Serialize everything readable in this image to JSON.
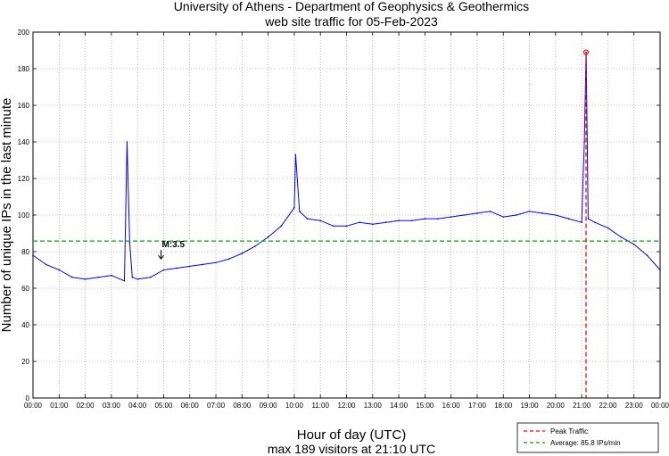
{
  "chart_data": {
    "type": "line",
    "title": "University of Athens - Department of Geophysics & Geothermics",
    "subtitle": "web site traffic for 05-Feb-2023",
    "xlabel": "Hour of day (UTC)",
    "ylabel": "Number of unique IPs in the last minute",
    "footer": "max 189 visitors at 21:10 UTC",
    "xlim": [
      0,
      24
    ],
    "ylim": [
      0,
      200
    ],
    "x_ticks": [
      "00:00",
      "01:00",
      "02:00",
      "03:00",
      "04:00",
      "05:00",
      "06:00",
      "07:00",
      "08:00",
      "09:00",
      "10:00",
      "11:00",
      "12:00",
      "13:00",
      "14:00",
      "15:00",
      "16:00",
      "17:00",
      "18:00",
      "19:00",
      "20:00",
      "21:00",
      "22:00",
      "23:00",
      "00:00"
    ],
    "y_ticks": [
      "0",
      "20",
      "40",
      "60",
      "80",
      "100",
      "120",
      "140",
      "160",
      "180",
      "200"
    ],
    "grid": true,
    "legend_position": "bottom-right",
    "series": [
      {
        "name": "",
        "color": "#0000ff",
        "x": [
          0,
          0.5,
          1,
          1.5,
          2,
          2.5,
          3,
          3.5,
          3.6,
          3.7,
          3.8,
          4,
          4.5,
          5,
          5.5,
          6,
          6.5,
          7,
          7.5,
          8,
          8.5,
          9,
          9.5,
          10,
          10.05,
          10.2,
          10.5,
          11,
          11.5,
          12,
          12.5,
          13,
          13.5,
          14,
          14.5,
          15,
          15.5,
          16,
          16.5,
          17,
          17.5,
          18,
          18.5,
          19,
          19.5,
          20,
          20.5,
          21,
          21.1,
          21.17,
          21.25,
          21.5,
          22,
          22.5,
          23,
          23.5,
          24
        ],
        "y": [
          78,
          73,
          70,
          66,
          65,
          66,
          67,
          64,
          140,
          85,
          66,
          65,
          66,
          70,
          71,
          72,
          73,
          74,
          76,
          79,
          83,
          88,
          94,
          104,
          133,
          102,
          98,
          97,
          94,
          94,
          96,
          95,
          96,
          97,
          97,
          98,
          98,
          99,
          100,
          101,
          102,
          99,
          100,
          102,
          101,
          100,
          98,
          96,
          140,
          189,
          98,
          96,
          93,
          88,
          84,
          78,
          70
        ]
      }
    ],
    "peak": {
      "x": 21.1667,
      "y": 189,
      "label": "Peak Traffic",
      "color": "#ff0000"
    },
    "average": {
      "y": 85.8,
      "label": "Average: 85.8 IPs/min",
      "color": "#00aa00"
    },
    "annotation": {
      "x": 4.9,
      "y": 76,
      "label": "M:3.5"
    }
  }
}
